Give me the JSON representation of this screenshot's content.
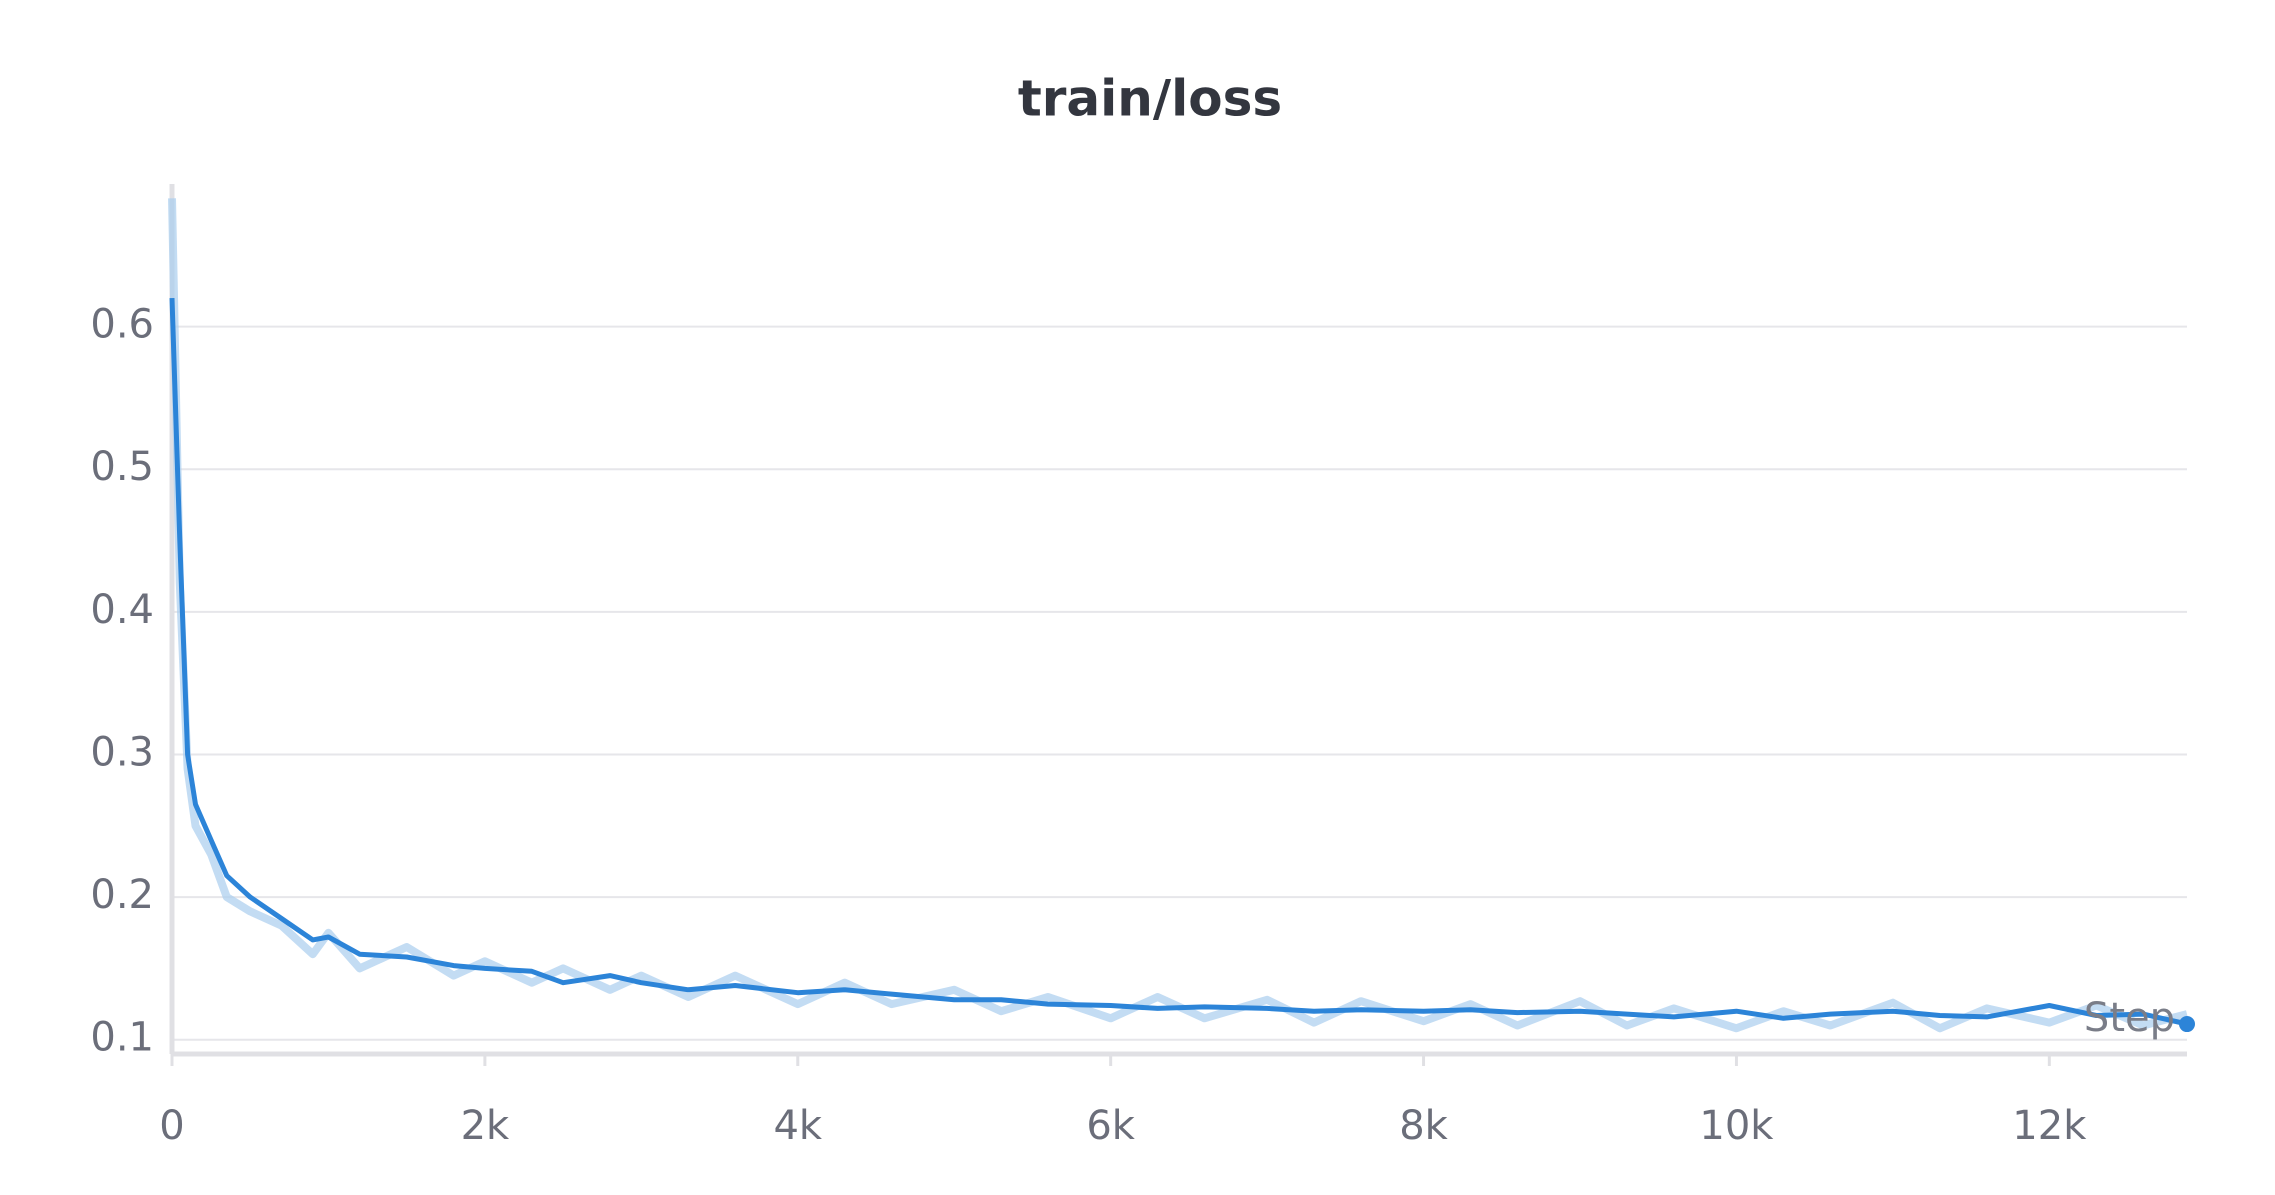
{
  "chart_data": {
    "type": "line",
    "title": "train/loss",
    "x_label": "Step",
    "x": [
      0,
      50,
      100,
      150,
      250,
      350,
      500,
      700,
      900,
      1000,
      1200,
      1500,
      1800,
      2000,
      2300,
      2500,
      2800,
      3000,
      3300,
      3600,
      4000,
      4300,
      4600,
      5000,
      5300,
      5600,
      6000,
      6300,
      6600,
      7000,
      7300,
      7600,
      8000,
      8300,
      8600,
      9000,
      9300,
      9600,
      10000,
      10300,
      10600,
      11000,
      11300,
      11600,
      12000,
      12300,
      12600,
      12880
    ],
    "series": [
      {
        "color": "#a9cdee",
        "values": [
          0.69,
          0.42,
          0.29,
          0.25,
          0.23,
          0.2,
          0.19,
          0.18,
          0.16,
          0.175,
          0.15,
          0.165,
          0.145,
          0.155,
          0.14,
          0.15,
          0.135,
          0.145,
          0.13,
          0.145,
          0.125,
          0.14,
          0.125,
          0.135,
          0.12,
          0.13,
          0.115,
          0.13,
          0.115,
          0.128,
          0.112,
          0.127,
          0.113,
          0.125,
          0.11,
          0.127,
          0.11,
          0.122,
          0.108,
          0.12,
          0.11,
          0.126,
          0.108,
          0.122,
          0.112,
          0.124,
          0.11,
          0.118
        ]
      },
      {
        "color": "#2c84d8",
        "values": [
          0.62,
          0.45,
          0.3,
          0.265,
          0.24,
          0.215,
          0.2,
          0.185,
          0.17,
          0.172,
          0.16,
          0.158,
          0.152,
          0.15,
          0.148,
          0.14,
          0.145,
          0.14,
          0.135,
          0.138,
          0.133,
          0.135,
          0.132,
          0.128,
          0.128,
          0.125,
          0.124,
          0.122,
          0.123,
          0.122,
          0.12,
          0.121,
          0.12,
          0.121,
          0.119,
          0.12,
          0.118,
          0.116,
          0.12,
          0.115,
          0.118,
          0.12,
          0.117,
          0.116,
          0.124,
          0.117,
          0.118,
          0.111
        ]
      }
    ],
    "xlim": [
      0,
      12880
    ],
    "ylim": [
      0.09,
      0.7
    ],
    "xticks": [
      0,
      {
        "value": 2000,
        "label": "2k"
      },
      {
        "value": 4000,
        "label": "4k"
      },
      {
        "value": 6000,
        "label": "6k"
      },
      {
        "value": 8000,
        "label": "8k"
      },
      {
        "value": 10000,
        "label": "10k"
      },
      {
        "value": 12000,
        "label": "12k"
      }
    ],
    "yticks": [
      0.1,
      0.2,
      0.3,
      0.4,
      0.5,
      0.6
    ],
    "grid": true
  }
}
